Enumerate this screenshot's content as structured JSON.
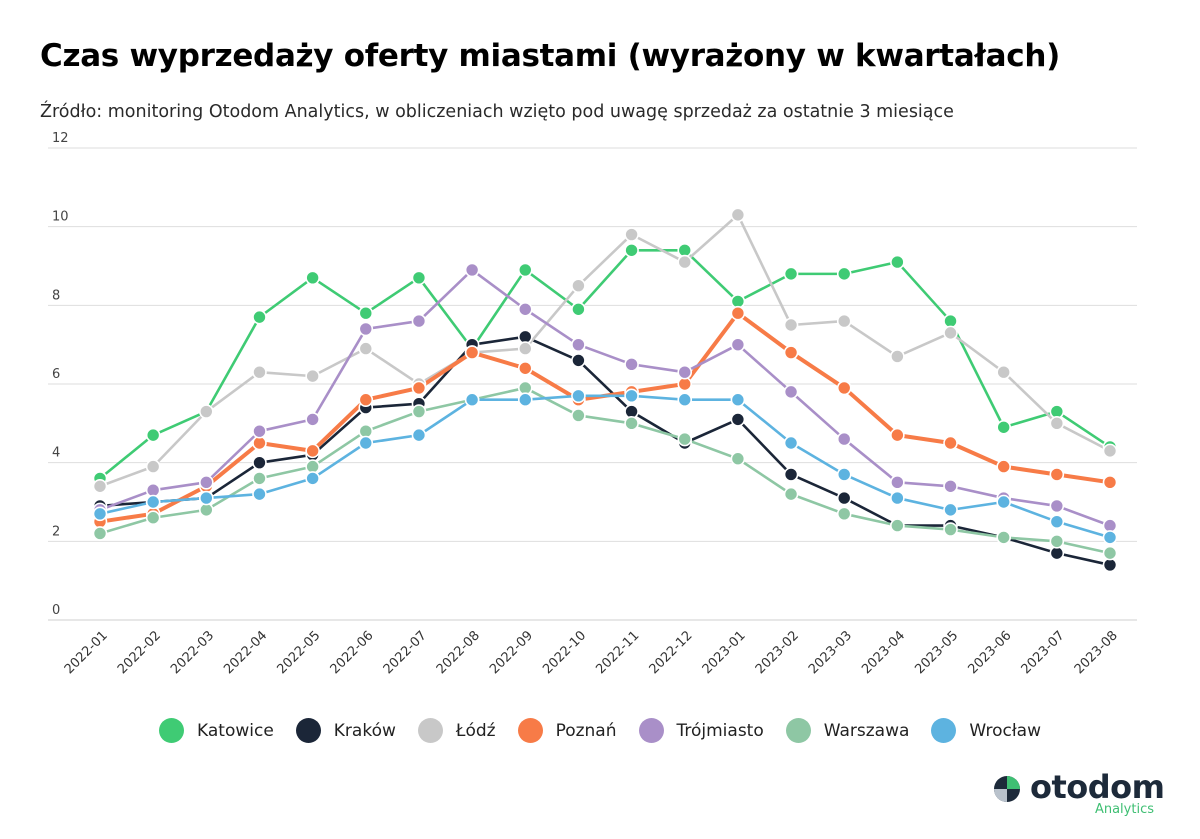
{
  "chart_data": {
    "type": "line",
    "title": "Czas wyprzedaży oferty miastami (wyrażony w kwartałach)",
    "subtitle": "Źródło: monitoring Otodom Analytics, w obliczeniach wzięto pod uwagę sprzedaż za ostatnie 3 miesiące",
    "xlabel": "",
    "ylabel": "",
    "ylim": [
      0,
      12
    ],
    "yticks": [
      0,
      2,
      4,
      6,
      8,
      10,
      12
    ],
    "grid": true,
    "legend_position": "bottom-center",
    "categories": [
      "2022-01",
      "2022-02",
      "2022-03",
      "2022-04",
      "2022-05",
      "2022-06",
      "2022-07",
      "2022-08",
      "2022-09",
      "2022-10",
      "2022-11",
      "2022-12",
      "2023-01",
      "2023-02",
      "2023-03",
      "2023-04",
      "2023-05",
      "2023-06",
      "2023-07",
      "2023-08"
    ],
    "series": [
      {
        "name": "Katowice",
        "color": "#3fcb74",
        "values": [
          3.6,
          4.7,
          5.3,
          7.7,
          8.7,
          7.8,
          8.7,
          6.9,
          8.9,
          7.9,
          9.4,
          9.4,
          8.1,
          8.8,
          8.8,
          9.1,
          7.6,
          4.9,
          5.3,
          4.4
        ]
      },
      {
        "name": "Kraków",
        "color": "#1b2638",
        "values": [
          2.9,
          3.0,
          3.1,
          4.0,
          4.2,
          5.4,
          5.5,
          7.0,
          7.2,
          6.6,
          5.3,
          4.5,
          5.1,
          3.7,
          3.1,
          2.4,
          2.4,
          2.1,
          1.7,
          1.4
        ]
      },
      {
        "name": "Łódź",
        "color": "#c8c8c8",
        "values": [
          3.4,
          3.9,
          5.3,
          6.3,
          6.2,
          6.9,
          6.0,
          6.8,
          6.9,
          8.5,
          9.8,
          9.1,
          10.3,
          7.5,
          7.6,
          6.7,
          7.3,
          6.3,
          5.0,
          4.3
        ]
      },
      {
        "name": "Poznań",
        "color": "#f77b47",
        "values": [
          2.5,
          2.7,
          3.4,
          4.5,
          4.3,
          5.6,
          5.9,
          6.8,
          6.4,
          5.6,
          5.8,
          6.0,
          7.8,
          6.8,
          5.9,
          4.7,
          4.5,
          3.9,
          3.7,
          3.5
        ]
      },
      {
        "name": "Trójmiasto",
        "color": "#a98fc8",
        "values": [
          2.8,
          3.3,
          3.5,
          4.8,
          5.1,
          7.4,
          7.6,
          8.9,
          7.9,
          7.0,
          6.5,
          6.3,
          7.0,
          5.8,
          4.6,
          3.5,
          3.4,
          3.1,
          2.9,
          2.4
        ]
      },
      {
        "name": "Warszawa",
        "color": "#8ec7a4",
        "values": [
          2.2,
          2.6,
          2.8,
          3.6,
          3.9,
          4.8,
          5.3,
          5.6,
          5.9,
          5.2,
          5.0,
          4.6,
          4.1,
          3.2,
          2.7,
          2.4,
          2.3,
          2.1,
          2.0,
          1.7
        ]
      },
      {
        "name": "Wrocław",
        "color": "#5db3e0",
        "values": [
          2.7,
          3.0,
          3.1,
          3.2,
          3.6,
          4.5,
          4.7,
          5.6,
          5.6,
          5.7,
          5.7,
          5.6,
          5.6,
          4.5,
          3.7,
          3.1,
          2.8,
          3.0,
          2.5,
          2.1
        ]
      }
    ]
  },
  "brand": {
    "name": "otodom",
    "sub": "Analytics"
  }
}
